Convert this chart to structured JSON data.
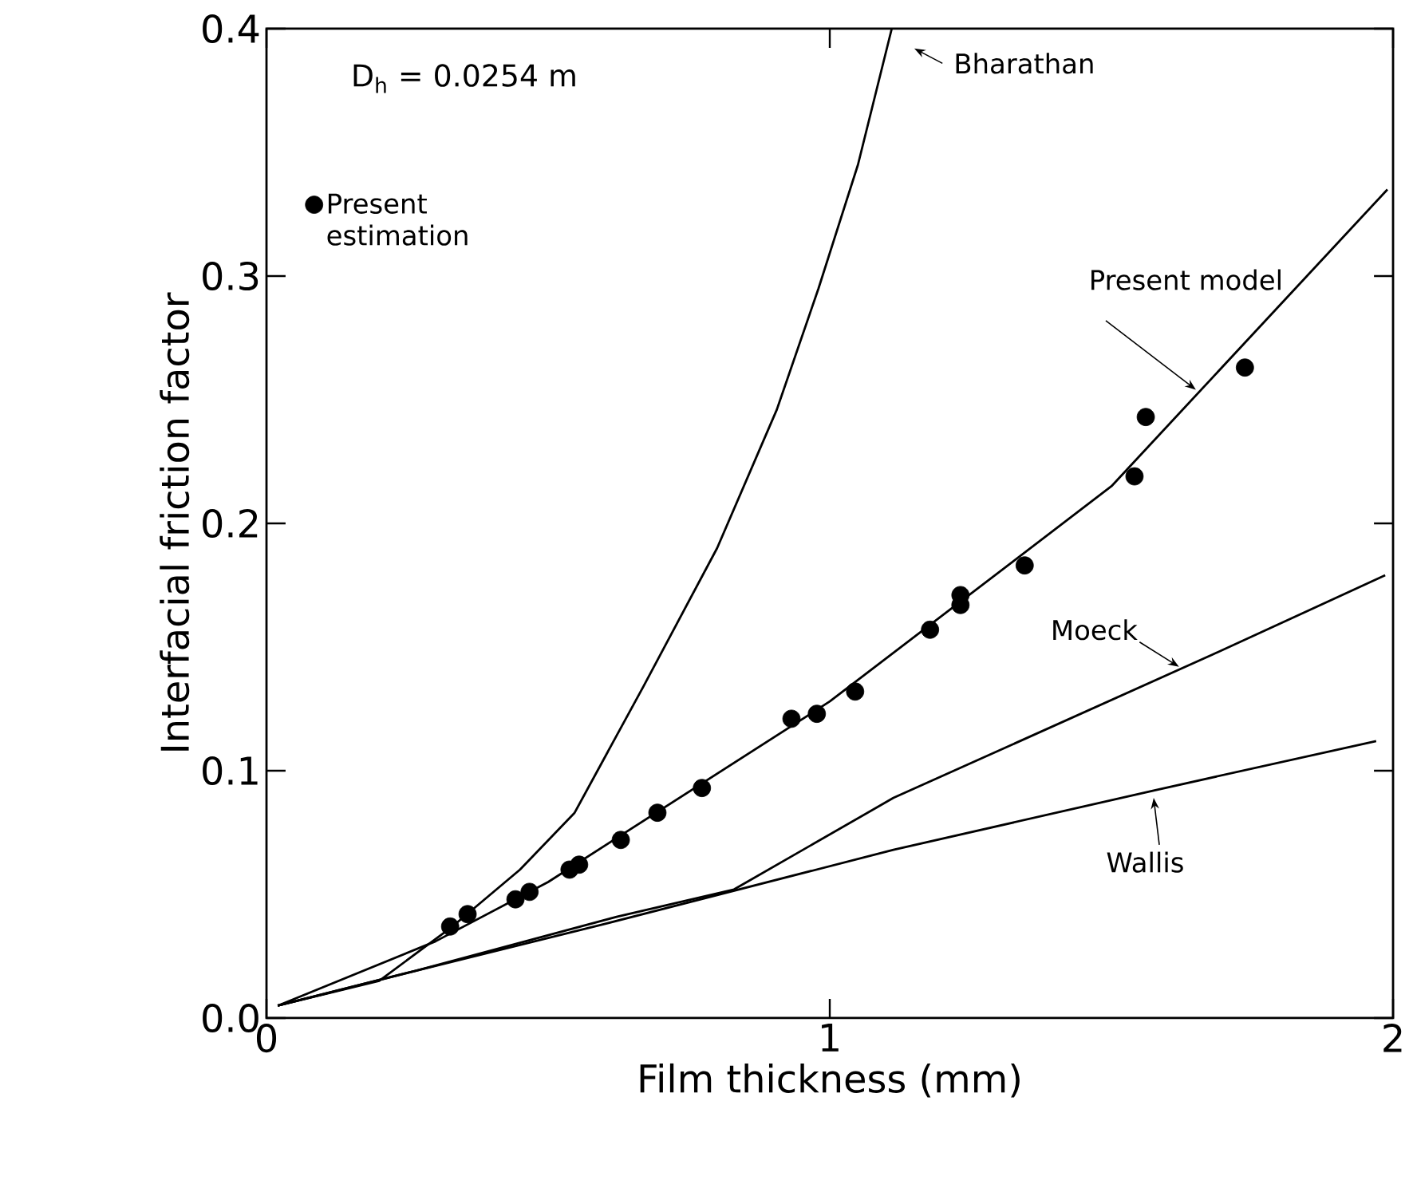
{
  "chart_data": {
    "type": "line",
    "xlabel": "Film thickness (mm)",
    "ylabel": "Interfacial friction factor",
    "xlim": [
      0,
      2
    ],
    "ylim": [
      0,
      0.4
    ],
    "xticks": [
      0,
      1,
      2
    ],
    "yticks": [
      {
        "value": 0,
        "label": "0.0"
      },
      {
        "value": 0.1,
        "label": "0.1"
      },
      {
        "value": 0.2,
        "label": "0.2"
      },
      {
        "value": 0.3,
        "label": "0.3"
      },
      {
        "value": 0.4,
        "label": "0.4"
      }
    ],
    "grid": false,
    "legend": "top left",
    "annotations": [
      "D$_{h}$ = 0.0254 m"
    ],
    "series": [
      {
        "name": "Present estimation",
        "type": "scatter",
        "marker": "circle",
        "color": "#000000",
        "x": [
          0.326,
          0.357,
          0.442,
          0.467,
          0.538,
          0.555,
          0.629,
          0.694,
          0.773,
          0.932,
          0.977,
          1.045,
          1.178,
          1.232,
          1.232,
          1.346,
          1.541,
          1.561,
          1.737
        ],
        "values": [
          0.037,
          0.042,
          0.048,
          0.051,
          0.06,
          0.062,
          0.072,
          0.083,
          0.093,
          0.121,
          0.123,
          0.132,
          0.157,
          0.171,
          0.167,
          0.183,
          0.219,
          0.243,
          0.263
        ]
      },
      {
        "name": "Bharathan",
        "marker": "none",
        "color": "#000000",
        "x": [
          0.02,
          0.2,
          0.33,
          0.45,
          0.547,
          0.669,
          0.8,
          0.906,
          0.98,
          1.05,
          1.11
        ],
        "values": [
          0.005,
          0.015,
          0.037,
          0.06,
          0.083,
          0.134,
          0.19,
          0.246,
          0.295,
          0.345,
          0.4
        ]
      },
      {
        "name": "Present model",
        "marker": "none",
        "color": "#000000",
        "x": [
          0.02,
          0.3,
          0.5,
          1.0,
          1.5,
          1.99
        ],
        "values": [
          0.005,
          0.031,
          0.055,
          0.128,
          0.215,
          0.335
        ]
      },
      {
        "name": "Moeck",
        "marker": "none",
        "color": "#000000",
        "x": [
          0.02,
          0.263,
          0.623,
          0.83,
          1.113,
          1.68,
          1.986
        ],
        "values": [
          0.005,
          0.019,
          0.041,
          0.052,
          0.089,
          0.147,
          0.179
        ]
      },
      {
        "name": "Wallis",
        "marker": "none",
        "color": "#000000",
        "x": [
          0.02,
          0.263,
          0.6,
          1.113,
          1.575,
          1.97
        ],
        "values": [
          0.005,
          0.019,
          0.038,
          0.068,
          0.092,
          0.112
        ]
      }
    ]
  }
}
